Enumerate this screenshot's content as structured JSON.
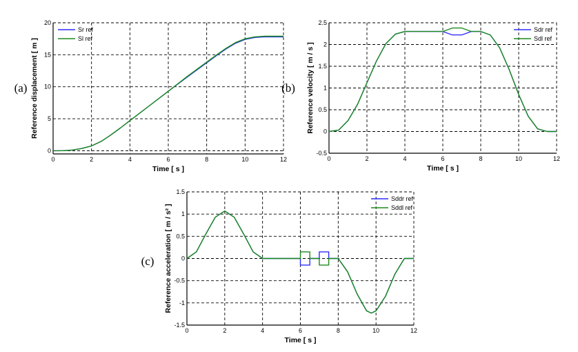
{
  "chart_data": [
    {
      "type": "line",
      "panel_label": "(a)",
      "xlabel": "Time [ s ]",
      "ylabel": "Reference  displacement  [ m ]",
      "xlim": [
        0,
        12
      ],
      "ylim": [
        -0.5,
        20
      ],
      "xticks": [
        "0",
        "2",
        "4",
        "6",
        "8",
        "10",
        "12"
      ],
      "yticks": [
        "0",
        "5",
        "10",
        "15",
        "20"
      ],
      "grid": true,
      "legend_position": "top-left",
      "series": [
        {
          "name": "Sr ref",
          "color": "#2b2bff",
          "x": [
            0,
            0.5,
            1,
            1.5,
            2,
            2.5,
            3,
            3.5,
            4,
            5,
            6,
            7,
            8,
            8.5,
            9,
            9.5,
            10,
            10.5,
            11,
            11.5,
            12
          ],
          "y": [
            0,
            0.01,
            0.1,
            0.35,
            0.75,
            1.45,
            2.45,
            3.55,
            4.7,
            7.0,
            9.3,
            11.55,
            13.75,
            14.85,
            15.9,
            16.8,
            17.4,
            17.7,
            17.8,
            17.8,
            17.8
          ]
        },
        {
          "name": "Sl ref",
          "color": "#1a8a1a",
          "x": [
            0,
            0.5,
            1,
            1.5,
            2,
            2.5,
            3,
            3.5,
            4,
            5,
            6,
            7,
            8,
            8.5,
            9,
            9.5,
            10,
            10.5,
            11,
            11.5,
            12
          ],
          "y": [
            0,
            0.01,
            0.1,
            0.35,
            0.75,
            1.45,
            2.45,
            3.55,
            4.7,
            7.0,
            9.3,
            11.65,
            13.85,
            14.95,
            16.0,
            16.9,
            17.5,
            17.8,
            17.9,
            17.9,
            17.9
          ]
        }
      ]
    },
    {
      "type": "line",
      "panel_label": "(b)",
      "xlabel": "Time [ s ]",
      "ylabel": "Reference  velocity  [ m / s ]",
      "xlim": [
        0,
        12
      ],
      "ylim": [
        -0.5,
        2.5
      ],
      "xticks": [
        "0",
        "2",
        "4",
        "6",
        "8",
        "10",
        "12"
      ],
      "yticks": [
        "-0.5",
        "0",
        "0.5",
        "1",
        "1.5",
        "2",
        "2.5"
      ],
      "grid": true,
      "legend_position": "top-right",
      "series": [
        {
          "name": "Sdr ref",
          "color": "#2b2bff",
          "x": [
            0,
            0.5,
            1,
            1.5,
            2,
            2.5,
            3,
            3.5,
            4,
            6,
            6.5,
            7,
            7.5,
            8,
            8.5,
            9,
            9.5,
            10,
            10.5,
            11,
            11.5,
            12
          ],
          "y": [
            0,
            0.03,
            0.25,
            0.62,
            1.12,
            1.62,
            2.02,
            2.24,
            2.3,
            2.3,
            2.22,
            2.22,
            2.3,
            2.3,
            2.22,
            1.92,
            1.42,
            0.85,
            0.35,
            0.06,
            0,
            0
          ]
        },
        {
          "name": "Sdl ref",
          "color": "#1a8a1a",
          "x": [
            0,
            0.5,
            1,
            1.5,
            2,
            2.5,
            3,
            3.5,
            4,
            6,
            6.5,
            7,
            7.5,
            8,
            8.5,
            9,
            9.5,
            10,
            10.5,
            11,
            11.5,
            12
          ],
          "y": [
            0,
            0.03,
            0.25,
            0.62,
            1.12,
            1.62,
            2.02,
            2.24,
            2.3,
            2.3,
            2.38,
            2.38,
            2.3,
            2.3,
            2.22,
            1.92,
            1.42,
            0.85,
            0.35,
            0.06,
            0,
            0
          ]
        }
      ]
    },
    {
      "type": "line",
      "panel_label": "(c)",
      "xlabel": "Time [ s ]",
      "ylabel": "Reference  acceleration  [ m / s² ]",
      "xlim": [
        0,
        12
      ],
      "ylim": [
        -1.5,
        1.5
      ],
      "xticks": [
        "0",
        "2",
        "4",
        "6",
        "8",
        "10",
        "12"
      ],
      "yticks": [
        "-1.5",
        "-1",
        "-0.5",
        "0",
        "0.5",
        "1",
        "1.5"
      ],
      "grid": true,
      "legend_position": "top-right",
      "series": [
        {
          "name": "Sddr ref",
          "color": "#2b2bff",
          "x": [
            0,
            0.5,
            1,
            1.5,
            2,
            2.5,
            3,
            3.5,
            4,
            6,
            6,
            6.5,
            6.5,
            7,
            7,
            7.5,
            7.5,
            8,
            8.5,
            9,
            9.5,
            9.75,
            10,
            10.5,
            11,
            11.5,
            12
          ],
          "y": [
            0,
            0.15,
            0.55,
            0.93,
            1.07,
            0.93,
            0.55,
            0.15,
            0,
            0,
            -0.15,
            -0.15,
            0,
            0,
            0.15,
            0.15,
            0,
            0,
            -0.3,
            -0.8,
            -1.18,
            -1.23,
            -1.18,
            -0.85,
            -0.35,
            0,
            0
          ]
        },
        {
          "name": "Sddl ref",
          "color": "#1a8a1a",
          "x": [
            0,
            0.5,
            1,
            1.5,
            2,
            2.5,
            3,
            3.5,
            4,
            6,
            6,
            6.5,
            6.5,
            7,
            7,
            7.5,
            7.5,
            8,
            8.5,
            9,
            9.5,
            9.75,
            10,
            10.5,
            11,
            11.5,
            12
          ],
          "y": [
            0,
            0.15,
            0.55,
            0.93,
            1.07,
            0.93,
            0.55,
            0.15,
            0,
            0,
            0.15,
            0.15,
            0,
            0,
            -0.15,
            -0.15,
            0,
            0,
            -0.3,
            -0.8,
            -1.18,
            -1.23,
            -1.18,
            -0.85,
            -0.35,
            0,
            0
          ]
        }
      ]
    }
  ]
}
